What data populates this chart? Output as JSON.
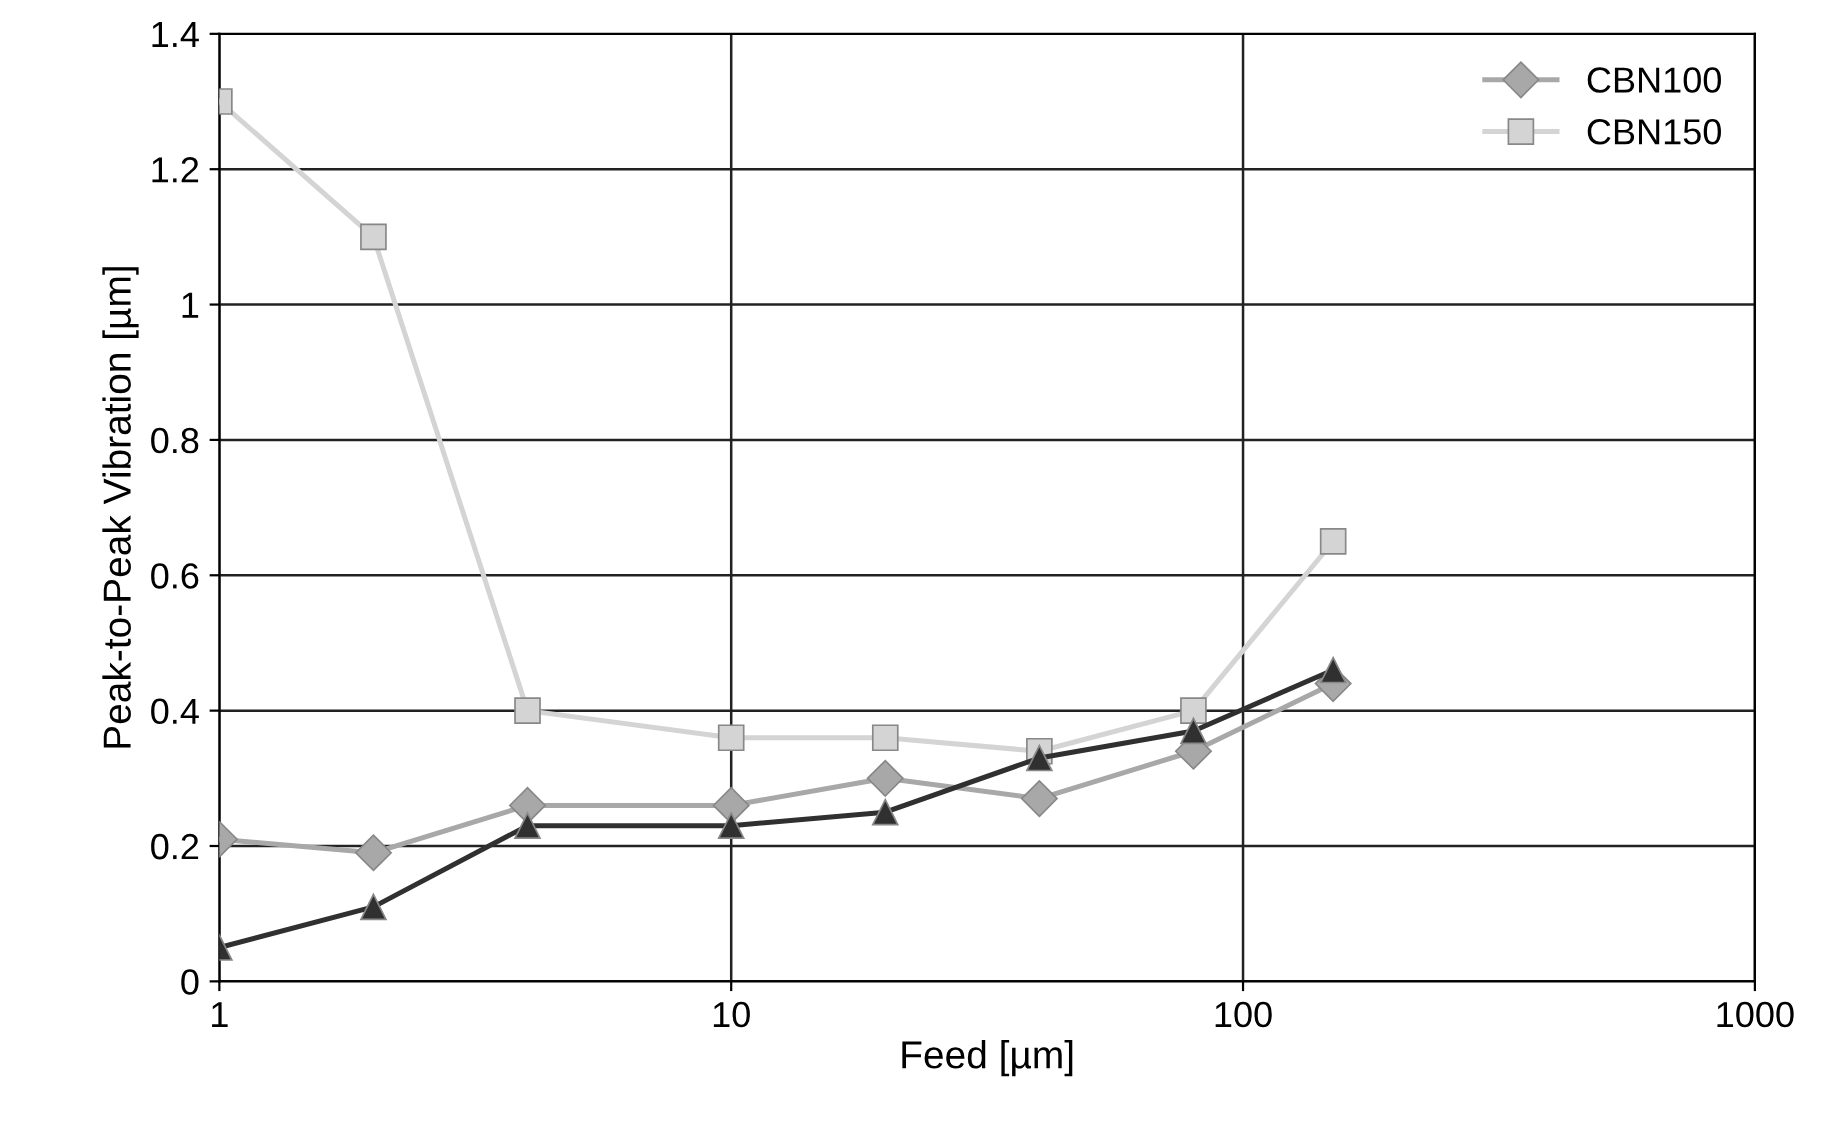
{
  "chart_data": {
    "type": "line",
    "xlabel": "Feed [µm]",
    "ylabel": "Peak-to-Peak Vibration [µm]",
    "log": "x",
    "grid": true,
    "legend": "top right",
    "xlim": [
      1,
      1000
    ],
    "xticks": [
      1,
      10,
      100,
      1000
    ],
    "ylim": [
      0,
      1.4
    ],
    "yticks": [
      0,
      0.2,
      0.4,
      0.6,
      0.8,
      1,
      1.2,
      1.4
    ],
    "x": [
      1,
      2,
      4,
      10,
      20,
      40,
      80,
      150
    ],
    "series": [
      {
        "name": "CBN100",
        "color": "#a8a8a8",
        "marker": "diamond",
        "values": [
          0.21,
          0.19,
          0.26,
          0.26,
          0.3,
          0.27,
          0.34,
          0.44
        ]
      },
      {
        "name": "CBN150",
        "color": "#d4d4d4",
        "marker": "square",
        "values": [
          1.3,
          1.1,
          0.4,
          0.36,
          0.36,
          0.34,
          0.4,
          0.65
        ]
      },
      {
        "color": "#303030",
        "marker": "triangle",
        "values": [
          0.05,
          0.11,
          0.23,
          0.23,
          0.25,
          0.33,
          0.37,
          0.46
        ]
      }
    ]
  }
}
